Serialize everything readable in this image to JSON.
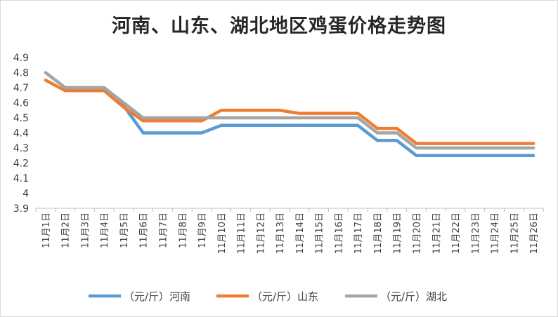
{
  "chart_data": {
    "type": "line",
    "title": "河南、山东、湖北地区鸡蛋价格走势图",
    "xlabel": "",
    "ylabel": "",
    "ylim": [
      3.9,
      4.9
    ],
    "yticks": [
      "4.9",
      "4.8",
      "4.7",
      "4.6",
      "4.5",
      "4.4",
      "4.3",
      "4.2",
      "4.1",
      "4",
      "3.9"
    ],
    "grid": false,
    "legend_position": "bottom",
    "categories": [
      "11月1日",
      "11月2日",
      "11月3日",
      "11月4日",
      "11月5日",
      "11月6日",
      "11月7日",
      "11月8日",
      "11月9日",
      "11月10日",
      "11月11日",
      "11月12日",
      "11月13日",
      "11月14日",
      "11月15日",
      "11月16日",
      "11月17日",
      "11月18日",
      "11月19日",
      "11月20日",
      "11月21日",
      "11月22日",
      "11月23日",
      "11月24日",
      "11月25日",
      "11月26日"
    ],
    "series": [
      {
        "name": "（元/斤）河南",
        "color": "#5b9bd5",
        "values": [
          4.8,
          4.7,
          4.7,
          4.7,
          4.58,
          4.4,
          4.4,
          4.4,
          4.4,
          4.45,
          4.45,
          4.45,
          4.45,
          4.45,
          4.45,
          4.45,
          4.45,
          4.35,
          4.35,
          4.25,
          4.25,
          4.25,
          4.25,
          4.25,
          4.25,
          4.25
        ]
      },
      {
        "name": "（元/斤）山东",
        "color": "#ed7d31",
        "values": [
          4.75,
          4.68,
          4.68,
          4.68,
          4.57,
          4.48,
          4.48,
          4.48,
          4.48,
          4.55,
          4.55,
          4.55,
          4.55,
          4.53,
          4.53,
          4.53,
          4.53,
          4.43,
          4.43,
          4.33,
          4.33,
          4.33,
          4.33,
          4.33,
          4.33,
          4.33
        ]
      },
      {
        "name": "（元/斤）湖北",
        "color": "#a5a5a5",
        "values": [
          4.8,
          4.7,
          4.7,
          4.7,
          4.6,
          4.5,
          4.5,
          4.5,
          4.5,
          4.5,
          4.5,
          4.5,
          4.5,
          4.5,
          4.5,
          4.5,
          4.5,
          4.4,
          4.4,
          4.3,
          4.3,
          4.3,
          4.3,
          4.3,
          4.3,
          4.3
        ]
      }
    ]
  }
}
